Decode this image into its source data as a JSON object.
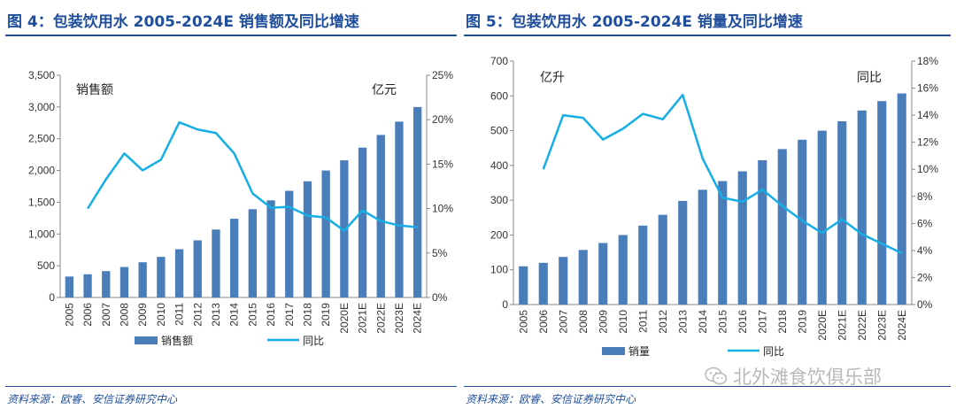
{
  "colors": {
    "bar": "#4a7ebb",
    "line": "#16aee6",
    "title": "#1f4e9c",
    "axis": "#888888"
  },
  "left": {
    "title": "图 4：包装饮用水 2005-2024E 销售额及同比增速",
    "source": "资料来源：欧睿、安信证券研究中心",
    "chart_data": {
      "type": "bar+line",
      "title": "包装饮用水 2005-2024E 销售额及同比增速",
      "categories": [
        "2005",
        "2006",
        "2007",
        "2008",
        "2009",
        "2010",
        "2011",
        "2012",
        "2013",
        "2014",
        "2015",
        "2016",
        "2017",
        "2018",
        "2019",
        "2020E",
        "2021E",
        "2022E",
        "2023E",
        "2024E"
      ],
      "unit_left": "销售额",
      "unit_right": "亿元",
      "y_left": {
        "min": 0,
        "max": 3500,
        "step": 500,
        "ticks": [
          "0",
          "500",
          "1,000",
          "1,500",
          "2,000",
          "2,500",
          "3,000",
          "3,500"
        ]
      },
      "y_right": {
        "min": 0,
        "max": 25,
        "step": 5,
        "ticks": [
          "0%",
          "5%",
          "10%",
          "15%",
          "20%",
          "25%"
        ]
      },
      "series": [
        {
          "name": "销售额",
          "kind": "bar",
          "axis": "left",
          "values": [
            330,
            365,
            415,
            480,
            555,
            640,
            760,
            900,
            1070,
            1240,
            1390,
            1530,
            1680,
            1830,
            2000,
            2160,
            2360,
            2560,
            2770,
            3000
          ]
        },
        {
          "name": "同比",
          "kind": "line",
          "axis": "right",
          "values": [
            null,
            10.0,
            13.3,
            16.2,
            14.3,
            15.5,
            19.7,
            18.9,
            18.5,
            16.2,
            11.7,
            10.1,
            10.2,
            9.2,
            9.0,
            7.5,
            9.8,
            8.6,
            8.1,
            7.9
          ]
        }
      ],
      "legend": [
        "销售额",
        "同比"
      ]
    }
  },
  "right": {
    "title": "图 5：包装饮用水 2005-2024E 销量及同比增速",
    "source": "资料来源：欧睿、安信证券研究中心",
    "watermark": "北外滩食饮俱乐部",
    "chart_data": {
      "type": "bar+line",
      "title": "包装饮用水 2005-2024E 销量及同比增速",
      "categories": [
        "2005",
        "2006",
        "2007",
        "2008",
        "2009",
        "2010",
        "2011",
        "2012",
        "2013",
        "2014",
        "2015",
        "2016",
        "2017",
        "2018",
        "2019",
        "2020E",
        "2021E",
        "2022E",
        "2023E",
        "2024E"
      ],
      "unit_left": "亿升",
      "unit_right": "同比",
      "y_left": {
        "min": 0,
        "max": 700,
        "step": 100,
        "ticks": [
          "0",
          "100",
          "200",
          "300",
          "400",
          "500",
          "600",
          "700"
        ]
      },
      "y_right": {
        "min": 0,
        "max": 18,
        "step": 2,
        "ticks": [
          "0%",
          "2%",
          "4%",
          "6%",
          "8%",
          "10%",
          "12%",
          "14%",
          "16%",
          "18%"
        ]
      },
      "series": [
        {
          "name": "销量",
          "kind": "bar",
          "axis": "left",
          "values": [
            110,
            120,
            137,
            157,
            177,
            200,
            227,
            258,
            298,
            330,
            355,
            383,
            415,
            447,
            474,
            500,
            527,
            558,
            585,
            607
          ]
        },
        {
          "name": "同比",
          "kind": "line",
          "axis": "right",
          "values": [
            null,
            10.0,
            14.0,
            13.8,
            12.2,
            13.0,
            14.1,
            13.7,
            15.5,
            10.8,
            7.9,
            7.6,
            8.5,
            7.3,
            6.2,
            5.3,
            6.3,
            5.2,
            4.5,
            3.8
          ]
        }
      ],
      "legend": [
        "销量",
        "同比"
      ]
    }
  }
}
